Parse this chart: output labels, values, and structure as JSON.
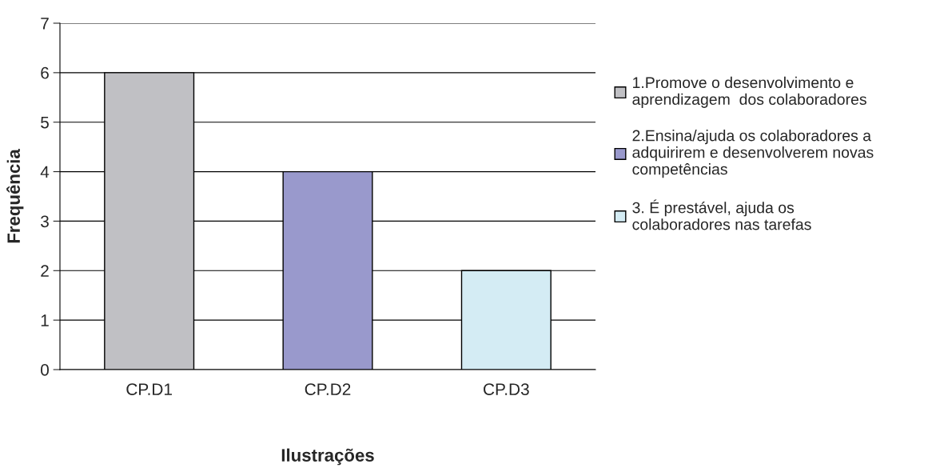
{
  "chart_data": {
    "type": "bar",
    "xlabel": "Ilustrações",
    "ylabel": "Frequência",
    "categories": [
      "CP.D1",
      "CP.D2",
      "CP.D3"
    ],
    "series": [
      {
        "name": "1.Promove o desenvolvimento e\naprendizagem  dos colaboradores",
        "color": "#c0c0c4",
        "values": [
          6,
          null,
          null
        ]
      },
      {
        "name": "2.Ensina/ajuda os colaboradores a\nadquirirem e desenvolverem novas\ncompetências",
        "color": "#9999cc",
        "values": [
          null,
          4,
          null
        ]
      },
      {
        "name": "3. É prestável, ajuda os\ncolaboradores nas tarefas",
        "color": "#d4ecf4",
        "values": [
          null,
          null,
          2
        ]
      }
    ],
    "ylim": [
      0,
      7
    ],
    "yticks": [
      0,
      1,
      2,
      3,
      4,
      5,
      6,
      7
    ],
    "grid": "y",
    "legend": "right"
  }
}
